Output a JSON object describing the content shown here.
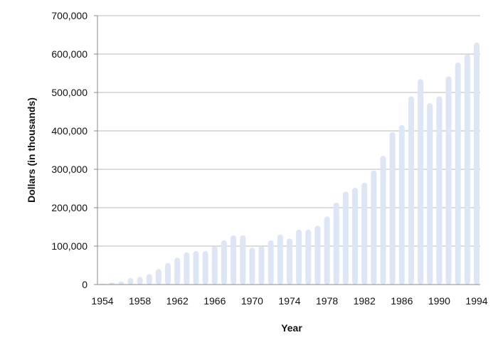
{
  "chart_data": {
    "type": "bar",
    "title": "",
    "xlabel": "Year",
    "ylabel": "Dollars (in thousands)",
    "ylim": [
      0,
      700000
    ],
    "yticks": [
      0,
      100000,
      200000,
      300000,
      400000,
      500000,
      600000,
      700000
    ],
    "ytick_labels": [
      "0",
      "100,000",
      "200,000",
      "300,000",
      "400,000",
      "500,000",
      "600,000",
      "700,000"
    ],
    "xtick_labels": [
      "1954",
      "1958",
      "1962",
      "1966",
      "1970",
      "1974",
      "1978",
      "1982",
      "1986",
      "1990",
      "1994"
    ],
    "grid": true,
    "bar_color": "#dce6f4",
    "categories": [
      "1954",
      "1955",
      "1956",
      "1957",
      "1958",
      "1959",
      "1960",
      "1961",
      "1962",
      "1963",
      "1964",
      "1965",
      "1966",
      "1967",
      "1968",
      "1969",
      "1970",
      "1971",
      "1972",
      "1973",
      "1974",
      "1975",
      "1976",
      "1977",
      "1978",
      "1979",
      "1980",
      "1981",
      "1982",
      "1983",
      "1984",
      "1985",
      "1986",
      "1987",
      "1988",
      "1989",
      "1990",
      "1991",
      "1992",
      "1993",
      "1994"
    ],
    "values": [
      2000,
      5000,
      8000,
      17000,
      20000,
      27000,
      40000,
      56000,
      70000,
      84000,
      87000,
      87000,
      100000,
      115000,
      128000,
      128000,
      96000,
      100000,
      115000,
      130000,
      120000,
      143000,
      143000,
      153000,
      177000,
      213000,
      242000,
      252000,
      265000,
      297000,
      335000,
      397000,
      415000,
      490000,
      535000,
      472000,
      490000,
      542000,
      578000,
      600000,
      630000
    ]
  }
}
